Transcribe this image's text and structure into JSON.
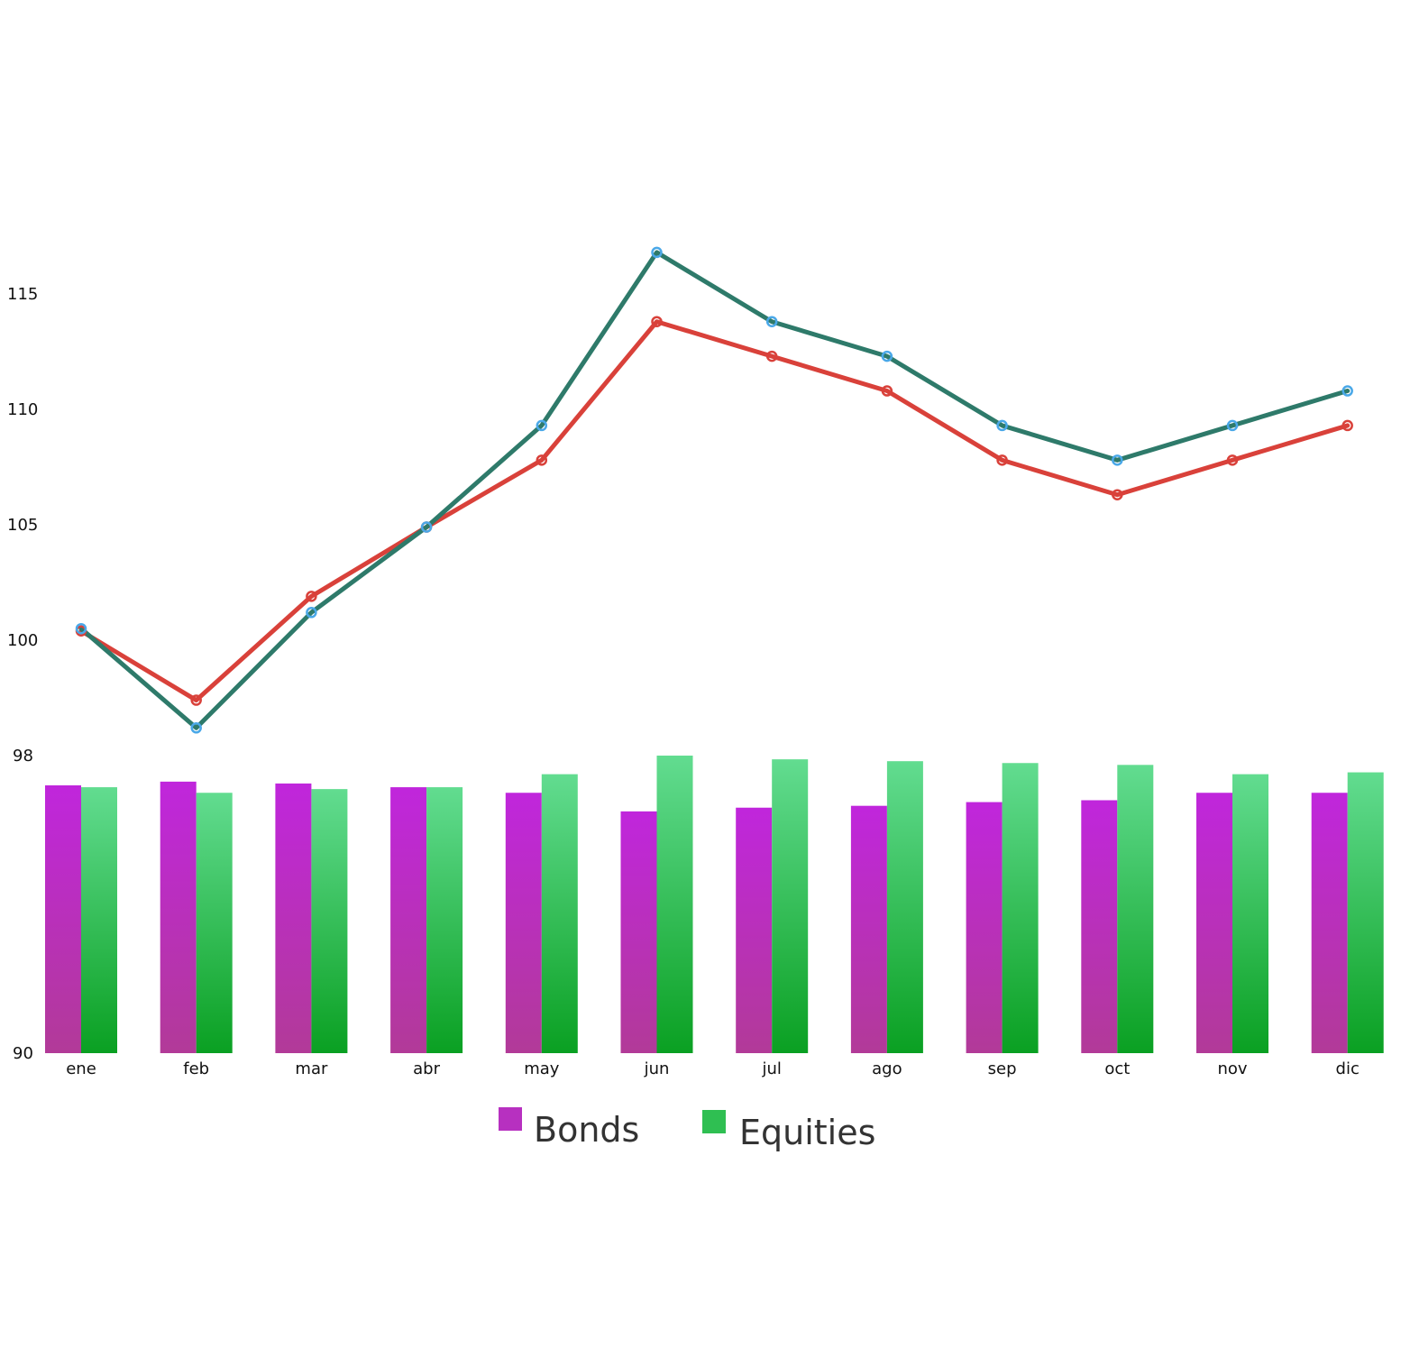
{
  "chart_data": {
    "type": "line+bar",
    "categories": [
      "ene",
      "feb",
      "mar",
      "abr",
      "may",
      "jun",
      "jul",
      "ago",
      "sep",
      "oct",
      "nov",
      "dic"
    ],
    "line_panel": {
      "y_ticks": [
        100,
        105,
        110,
        115
      ],
      "ylim": [
        95.8,
        121
      ],
      "series": [
        {
          "key": "teal",
          "color": "#2e7a6a",
          "marker_color": "#4aa8e8",
          "values": [
            100.5,
            96.2,
            101.2,
            104.9,
            109.3,
            116.8,
            113.8,
            112.3,
            109.3,
            107.8,
            109.3,
            110.8
          ]
        },
        {
          "key": "red",
          "color": "#d9413a",
          "marker_color": "#d9413a",
          "values": [
            100.4,
            97.4,
            101.9,
            104.9,
            107.8,
            113.8,
            112.3,
            110.8,
            107.8,
            106.3,
            107.8,
            109.3
          ]
        }
      ]
    },
    "bar_panel": {
      "y_ticks": [
        90,
        98
      ],
      "ylim": [
        90,
        98
      ],
      "series": [
        {
          "name": "Bonds",
          "color_top": "#c026dc",
          "color_bottom": "#b23a98",
          "legend_color": "#b730c0",
          "values": [
            97.2,
            97.3,
            97.25,
            97.15,
            97.0,
            96.5,
            96.6,
            96.65,
            96.75,
            96.8,
            97.0,
            97.0
          ]
        },
        {
          "name": "Equities",
          "color_top": "#62dc90",
          "color_bottom": "#0aa022",
          "legend_color": "#2fbf52",
          "values": [
            97.15,
            97.0,
            97.1,
            97.15,
            97.5,
            98.0,
            97.9,
            97.85,
            97.8,
            97.75,
            97.5,
            97.55
          ]
        }
      ],
      "legend_position": "bottom-center"
    }
  }
}
